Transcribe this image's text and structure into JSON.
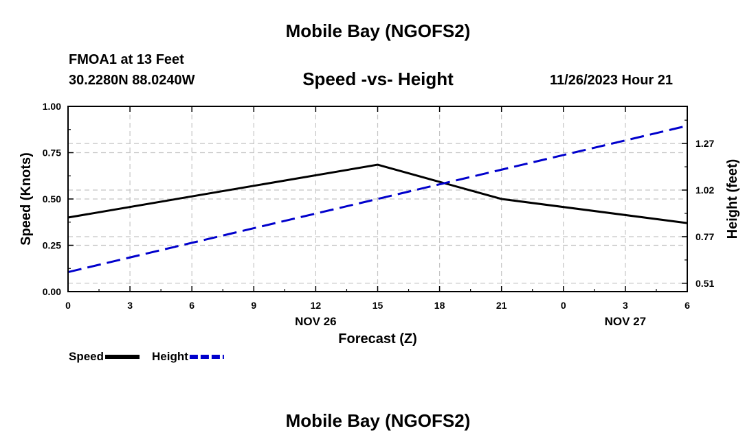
{
  "header": {
    "title": "Mobile Bay (NGOFS2)",
    "station": "FMOA1 at 13 Feet",
    "coords": "30.2280N  88.0240W",
    "chart_title": "Speed -vs- Height",
    "datetime": "11/26/2023 Hour 21",
    "footer_title": "Mobile Bay (NGOFS2)"
  },
  "chart_data": {
    "type": "line",
    "title": "Speed -vs- Height",
    "xlabel": "Forecast (Z)",
    "ylabel": "Speed (Knots)",
    "y2label": "Height (feet)",
    "x": [
      0,
      15,
      21,
      30
    ],
    "x_ticks": [
      "0",
      "3",
      "6",
      "9",
      "12",
      "15",
      "18",
      "21",
      "0",
      "3",
      "6"
    ],
    "x_date_labels": [
      {
        "label": "NOV 26",
        "at_tick": "12"
      },
      {
        "label": "NOV 27",
        "at_tick": "3"
      }
    ],
    "xlim": [
      0,
      30
    ],
    "ylim": [
      0,
      1.0
    ],
    "y_ticks": [
      "0.00",
      "0.25",
      "0.50",
      "0.75",
      "1.00"
    ],
    "y2lim": [
      0.4702,
      1.4642
    ],
    "y2_ticks": [
      "0.51",
      "0.77",
      "1.02",
      "1.27"
    ],
    "y2_tick_values": [
      0.515,
      0.765,
      1.015,
      1.265
    ],
    "grid": true,
    "legend_position": "bottom-left",
    "series": [
      {
        "name": "Speed",
        "axis": "left",
        "color": "#000000",
        "style": "solid",
        "x": [
          0,
          15,
          21,
          30
        ],
        "values": [
          0.4,
          0.685,
          0.5,
          0.37
        ]
      },
      {
        "name": "Height",
        "axis": "right",
        "color": "#0000cc",
        "style": "dashed",
        "x": [
          0,
          30
        ],
        "values": [
          0.575,
          1.36
        ]
      }
    ]
  }
}
